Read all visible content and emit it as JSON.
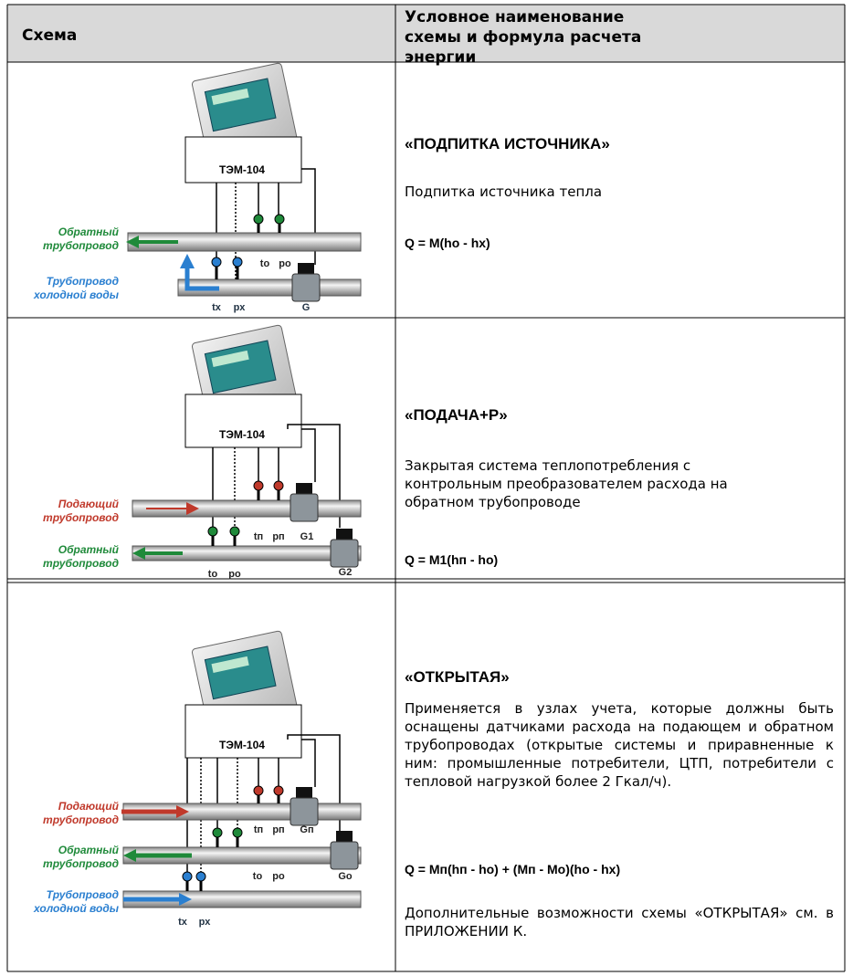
{
  "header": {
    "col1": "Схема",
    "col2": "Условное наименование схемы и формула расчета энергии"
  },
  "rows": [
    {
      "diagram": {
        "device": "ТЭМ-104",
        "pipe_labels": [
          [
            "Обратный",
            "трубопровод"
          ],
          [
            "Трубопровод",
            "холодной воды"
          ]
        ],
        "sensor_labels": [
          "tо",
          "pо",
          "tх",
          "px",
          "G"
        ]
      },
      "title": "«ПОДПИТКА ИСТОЧНИКА»",
      "paragraphs": [
        "Подпитка источника тепла"
      ],
      "formula": "Q = M(ho - hx)",
      "notes": []
    },
    {
      "diagram": {
        "device": "ТЭМ-104",
        "pipe_labels": [
          [
            "Подающий",
            "трубопровод"
          ],
          [
            "Обратный",
            "трубопровод"
          ]
        ],
        "sensor_labels": [
          "tп",
          "pп",
          "G1",
          "tо",
          "pо",
          "G2"
        ]
      },
      "title": "«ПОДАЧА+Р»",
      "paragraphs": [
        "Закрытая система теплопотребления с контрольным преобразователем расхода на обратном трубопроводе"
      ],
      "formula": "Q = M1(hп - ho)",
      "notes": []
    },
    {
      "diagram": {
        "device": "ТЭМ-104",
        "pipe_labels": [
          [
            "Подающий",
            "трубопровод"
          ],
          [
            "Обратный",
            "трубопровод"
          ],
          [
            "Трубопровод",
            "холодной воды"
          ]
        ],
        "sensor_labels": [
          "tп",
          "pп",
          "Gп",
          "tо",
          "pо",
          "Gо",
          "tх",
          "px"
        ]
      },
      "title": "«ОТКРЫТАЯ»",
      "paragraphs": [
        "Применяется в узлах учета, которые должны быть оснащены датчиками расхода на подающем и обратном трубопроводах (открытые системы и приравненные к ним: промышленные потребители, ЦТП, потребители с тепловой нагрузкой более 2 Гкал/ч)."
      ],
      "formula": "Q = Мп(hп - ho) + (Мп - Мо)(ho - hx)",
      "notes": [
        "Дополнительные возможности схемы «ОТКРЫТАЯ» см. в ПРИЛОЖЕНИИ К."
      ]
    }
  ]
}
